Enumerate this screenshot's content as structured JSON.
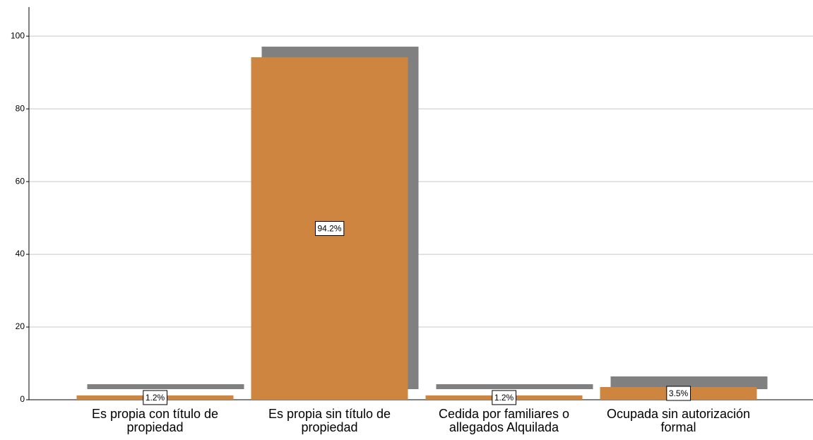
{
  "chart_data": {
    "type": "bar",
    "categories": [
      "Es propia con título de propiedad",
      "Es propia sin título de propiedad",
      "Cedida por familiares o allegados Alquilada",
      "Ocupada sin autorización formal"
    ],
    "values": [
      1.2,
      94.2,
      1.2,
      3.5
    ],
    "value_labels": [
      "1.2%",
      "94.2%",
      "1.2%",
      "3.5%"
    ],
    "color": "#cd853f",
    "shadow_color": "#808080",
    "ylim": [
      0,
      108
    ],
    "yticks": [
      0,
      20,
      40,
      60,
      80,
      100
    ],
    "grid": true
  }
}
